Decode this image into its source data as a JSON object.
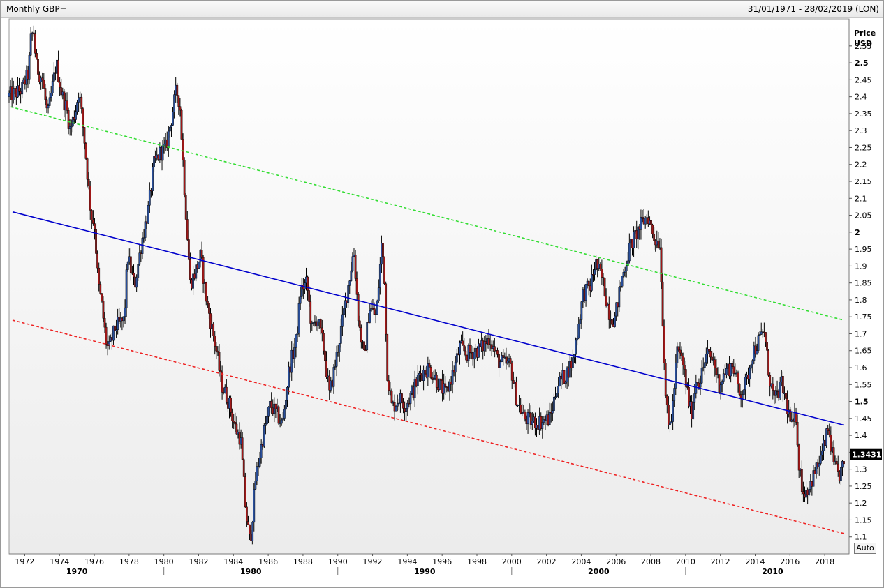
{
  "window": {
    "title": "Monthly GBP=",
    "range": "31/01/1971 - 28/02/2019 (LON)",
    "auto_label": "Auto"
  },
  "colors": {
    "up": "#2a4f9a",
    "down": "#a01818",
    "wick": "#000000",
    "upper_channel": "#33dd33",
    "mid_line": "#0000cc",
    "lower_channel": "#ee2222",
    "last_price_bg": "#000000"
  },
  "chart_data": {
    "type": "candlestick",
    "title": "Monthly GBP=",
    "y_axis": {
      "label_line1": "Price",
      "label_line2": "USD",
      "range": [
        1.05,
        2.63
      ],
      "ticks": [
        "2.55",
        "2.5",
        "2.45",
        "2.4",
        "2.35",
        "2.3",
        "2.25",
        "2.2",
        "2.15",
        "2.1",
        "2.05",
        "2",
        "1.95",
        "1.9",
        "1.85",
        "1.8",
        "1.75",
        "1.7",
        "1.65",
        "1.6",
        "1.55",
        "1.5",
        "1.45",
        "1.4",
        "1.35",
        "1.3",
        "1.25",
        "1.2",
        "1.15",
        "1.1"
      ],
      "major_ticks": [
        "2.5",
        "2",
        "1.5"
      ]
    },
    "x_axis": {
      "range": [
        1971.1,
        2019.4
      ],
      "year_ticks": [
        "1972",
        "1974",
        "1976",
        "1978",
        "1980",
        "1982",
        "1984",
        "1986",
        "1988",
        "1990",
        "1992",
        "1994",
        "1996",
        "1998",
        "2000",
        "2002",
        "2004",
        "2006",
        "2008",
        "2010",
        "2012",
        "2014",
        "2016",
        "2018"
      ],
      "decade_labels": [
        "1970",
        "1980",
        "1990",
        "2000",
        "2010"
      ]
    },
    "last_price": "1.3431",
    "anchors": [
      [
        1971.1,
        2.4
      ],
      [
        1971.9,
        2.42
      ],
      [
        1972.3,
        2.47
      ],
      [
        1972.45,
        2.58
      ],
      [
        1972.6,
        2.59
      ],
      [
        1972.75,
        2.49
      ],
      [
        1973.1,
        2.45
      ],
      [
        1973.4,
        2.34
      ],
      [
        1973.9,
        2.5
      ],
      [
        1974.2,
        2.41
      ],
      [
        1974.5,
        2.36
      ],
      [
        1974.7,
        2.3
      ],
      [
        1975.0,
        2.36
      ],
      [
        1975.2,
        2.42
      ],
      [
        1975.5,
        2.28
      ],
      [
        1975.9,
        2.05
      ],
      [
        1976.1,
        2.02
      ],
      [
        1976.3,
        1.85
      ],
      [
        1976.5,
        1.79
      ],
      [
        1976.75,
        1.68
      ],
      [
        1976.9,
        1.65
      ],
      [
        1977.3,
        1.72
      ],
      [
        1977.8,
        1.74
      ],
      [
        1978.0,
        1.93
      ],
      [
        1978.4,
        1.84
      ],
      [
        1978.8,
        1.97
      ],
      [
        1979.2,
        2.07
      ],
      [
        1979.5,
        2.2
      ],
      [
        1979.8,
        2.23
      ],
      [
        1980.2,
        2.25
      ],
      [
        1980.5,
        2.33
      ],
      [
        1980.8,
        2.42
      ],
      [
        1981.0,
        2.38
      ],
      [
        1981.3,
        2.1
      ],
      [
        1981.6,
        1.85
      ],
      [
        1981.8,
        1.87
      ],
      [
        1982.2,
        1.93
      ],
      [
        1982.5,
        1.81
      ],
      [
        1982.8,
        1.73
      ],
      [
        1983.1,
        1.65
      ],
      [
        1983.4,
        1.55
      ],
      [
        1983.8,
        1.5
      ],
      [
        1984.2,
        1.42
      ],
      [
        1984.5,
        1.39
      ],
      [
        1984.8,
        1.17
      ],
      [
        1985.05,
        1.08
      ],
      [
        1985.35,
        1.27
      ],
      [
        1985.8,
        1.4
      ],
      [
        1986.2,
        1.49
      ],
      [
        1986.6,
        1.46
      ],
      [
        1986.9,
        1.43
      ],
      [
        1987.3,
        1.6
      ],
      [
        1987.7,
        1.68
      ],
      [
        1987.95,
        1.83
      ],
      [
        1988.3,
        1.85
      ],
      [
        1988.6,
        1.71
      ],
      [
        1988.9,
        1.75
      ],
      [
        1989.3,
        1.65
      ],
      [
        1989.6,
        1.52
      ],
      [
        1989.9,
        1.6
      ],
      [
        1990.3,
        1.72
      ],
      [
        1990.8,
        1.88
      ],
      [
        1991.0,
        1.95
      ],
      [
        1991.3,
        1.73
      ],
      [
        1991.6,
        1.63
      ],
      [
        1991.9,
        1.78
      ],
      [
        1992.3,
        1.75
      ],
      [
        1992.6,
        1.96
      ],
      [
        1992.75,
        1.9
      ],
      [
        1992.9,
        1.6
      ],
      [
        1993.2,
        1.48
      ],
      [
        1993.6,
        1.51
      ],
      [
        1994.0,
        1.49
      ],
      [
        1994.4,
        1.53
      ],
      [
        1994.8,
        1.58
      ],
      [
        1995.3,
        1.6
      ],
      [
        1995.8,
        1.56
      ],
      [
        1996.3,
        1.52
      ],
      [
        1996.8,
        1.6
      ],
      [
        1997.1,
        1.66
      ],
      [
        1997.5,
        1.64
      ],
      [
        1998.0,
        1.65
      ],
      [
        1998.4,
        1.66
      ],
      [
        1998.8,
        1.69
      ],
      [
        1999.3,
        1.62
      ],
      [
        1999.7,
        1.61
      ],
      [
        2000.0,
        1.61
      ],
      [
        2000.4,
        1.5
      ],
      [
        2000.8,
        1.45
      ],
      [
        2001.3,
        1.44
      ],
      [
        2001.8,
        1.44
      ],
      [
        2002.3,
        1.45
      ],
      [
        2002.7,
        1.55
      ],
      [
        2003.2,
        1.58
      ],
      [
        2003.6,
        1.62
      ],
      [
        2003.9,
        1.72
      ],
      [
        2004.2,
        1.82
      ],
      [
        2004.6,
        1.84
      ],
      [
        2004.9,
        1.91
      ],
      [
        2005.3,
        1.86
      ],
      [
        2005.7,
        1.76
      ],
      [
        2006.0,
        1.74
      ],
      [
        2006.4,
        1.86
      ],
      [
        2006.9,
        1.96
      ],
      [
        2007.5,
        2.02
      ],
      [
        2007.9,
        2.05
      ],
      [
        2008.3,
        1.98
      ],
      [
        2008.6,
        1.97
      ],
      [
        2008.8,
        1.7
      ],
      [
        2008.95,
        1.5
      ],
      [
        2009.1,
        1.42
      ],
      [
        2009.3,
        1.46
      ],
      [
        2009.6,
        1.65
      ],
      [
        2009.9,
        1.62
      ],
      [
        2010.2,
        1.52
      ],
      [
        2010.4,
        1.46
      ],
      [
        2010.7,
        1.57
      ],
      [
        2010.9,
        1.56
      ],
      [
        2011.3,
        1.64
      ],
      [
        2011.7,
        1.62
      ],
      [
        2012.0,
        1.55
      ],
      [
        2012.4,
        1.59
      ],
      [
        2012.8,
        1.61
      ],
      [
        2013.2,
        1.52
      ],
      [
        2013.6,
        1.56
      ],
      [
        2013.9,
        1.64
      ],
      [
        2014.3,
        1.68
      ],
      [
        2014.6,
        1.71
      ],
      [
        2014.9,
        1.57
      ],
      [
        2015.2,
        1.5
      ],
      [
        2015.6,
        1.55
      ],
      [
        2015.9,
        1.49
      ],
      [
        2016.2,
        1.42
      ],
      [
        2016.45,
        1.46
      ],
      [
        2016.6,
        1.31
      ],
      [
        2016.85,
        1.23
      ],
      [
        2017.2,
        1.25
      ],
      [
        2017.6,
        1.3
      ],
      [
        2017.9,
        1.34
      ],
      [
        2018.2,
        1.4
      ],
      [
        2018.3,
        1.42
      ],
      [
        2018.6,
        1.31
      ],
      [
        2018.9,
        1.28
      ],
      [
        2019.15,
        1.31
      ]
    ],
    "trend_lines": [
      {
        "style": "dashed",
        "color_key": "upper_channel",
        "from": [
          1971.2,
          2.37
        ],
        "to": [
          2019.1,
          1.74
        ]
      },
      {
        "style": "solid",
        "color_key": "mid_line",
        "from": [
          1971.3,
          2.06
        ],
        "to": [
          2019.1,
          1.43
        ]
      },
      {
        "style": "dashed",
        "color_key": "lower_channel",
        "from": [
          1971.3,
          1.74
        ],
        "to": [
          2019.1,
          1.11
        ]
      }
    ]
  }
}
